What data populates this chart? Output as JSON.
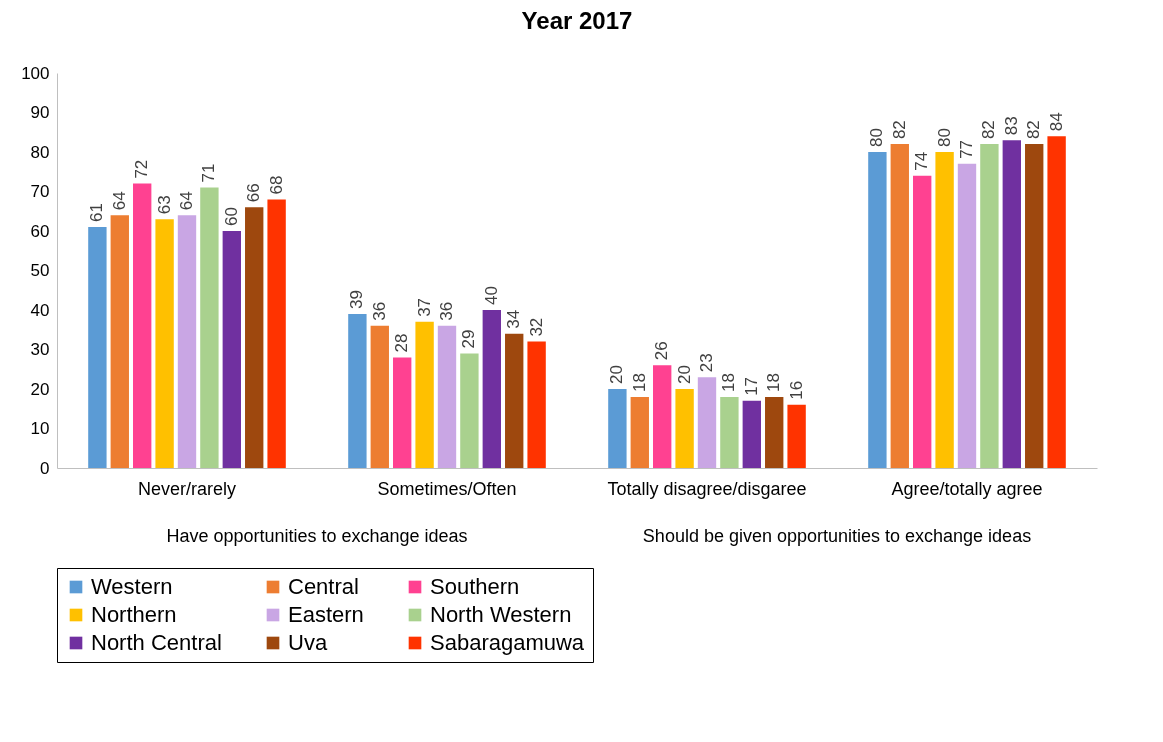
{
  "chart_data": {
    "type": "bar",
    "title": "Year 2017",
    "categories": [
      "Never/rarely",
      "Sometimes/Often",
      "Totally disagree/disgaree",
      "Agree/totally agree"
    ],
    "annotations": [
      "Have opportunities to exchange ideas",
      "Should be given opportunities to exchange ideas"
    ],
    "series": [
      {
        "name": "Western",
        "color": "#5b9bd5",
        "values": [
          61,
          39,
          20,
          80
        ]
      },
      {
        "name": "Central",
        "color": "#ed7d31",
        "values": [
          64,
          36,
          18,
          82
        ]
      },
      {
        "name": "Southern",
        "color": "#ff4191",
        "values": [
          72,
          28,
          26,
          74
        ]
      },
      {
        "name": "Northern",
        "color": "#ffc000",
        "values": [
          63,
          37,
          20,
          80
        ]
      },
      {
        "name": "Eastern",
        "color": "#c9a6e4",
        "values": [
          64,
          36,
          23,
          77
        ]
      },
      {
        "name": "North Western",
        "color": "#a9d18e",
        "values": [
          71,
          29,
          18,
          82
        ]
      },
      {
        "name": "North Central",
        "color": "#7030a0",
        "values": [
          60,
          40,
          17,
          83
        ]
      },
      {
        "name": "Uva",
        "color": "#9e480e",
        "values": [
          66,
          34,
          18,
          82
        ]
      },
      {
        "name": "Sabaragamuwa",
        "color": "#ff3300",
        "values": [
          68,
          32,
          16,
          84
        ]
      }
    ],
    "ylim": [
      0,
      100
    ],
    "yticks": [
      0,
      10,
      20,
      30,
      40,
      50,
      60,
      70,
      80,
      90,
      100
    ],
    "grid": false,
    "data_labels": true,
    "legend": "bottom"
  }
}
